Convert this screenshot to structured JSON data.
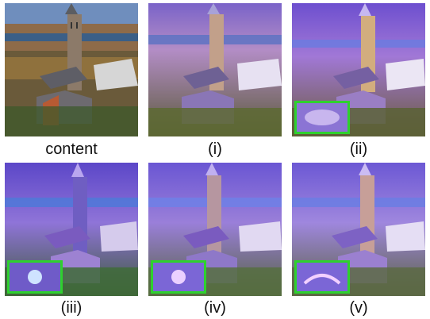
{
  "figure": {
    "panels": [
      {
        "label": "content",
        "style": "photo"
      },
      {
        "label": "(i)",
        "style": "stylized-1",
        "inset": false
      },
      {
        "label": "(ii)",
        "style": "stylized-2",
        "inset": true
      },
      {
        "label": "(iii)",
        "style": "stylized-3",
        "inset": true
      },
      {
        "label": "(iv)",
        "style": "stylized-4",
        "inset": true
      },
      {
        "label": "(v)",
        "style": "stylized-5",
        "inset": true
      }
    ],
    "colors": {
      "inset_border": "#2ed12e",
      "stylized_purple": "#7a4fd0",
      "photo_sky": "#6c8cbc",
      "photo_water": "#3a5f86"
    }
  }
}
